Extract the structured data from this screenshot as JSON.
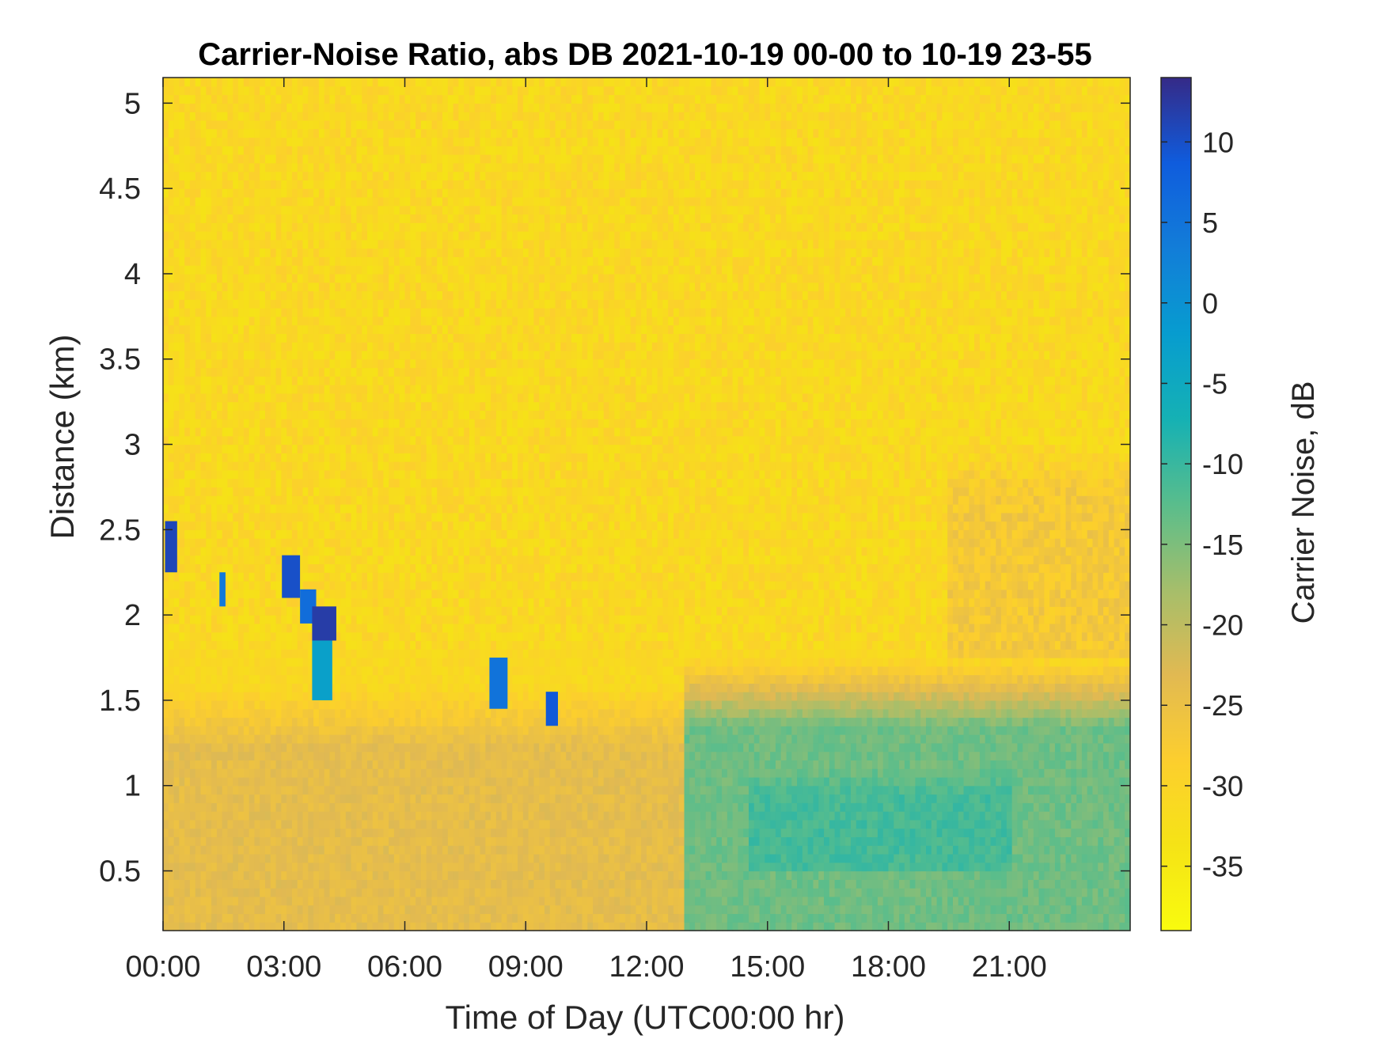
{
  "chart_data": {
    "type": "heatmap",
    "title": "Carrier-Noise Ratio, abs DB 2021-10-19 00-00 to 10-19 23-55",
    "xlabel": "Time of Day (UTC00:00 hr)",
    "ylabel": "Distance (km)",
    "colorbar_label": "Carrier Noise, dB",
    "x_ticks": [
      "00:00",
      "03:00",
      "06:00",
      "09:00",
      "12:00",
      "15:00",
      "18:00",
      "21:00"
    ],
    "x_tick_hours": [
      0,
      3,
      6,
      9,
      12,
      15,
      18,
      21
    ],
    "xlim_hours": [
      0,
      24
    ],
    "y_ticks": [
      "0.5",
      "1",
      "1.5",
      "2",
      "2.5",
      "3",
      "3.5",
      "4",
      "4.5",
      "5"
    ],
    "y_tick_values": [
      0.5,
      1,
      1.5,
      2,
      2.5,
      3,
      3.5,
      4,
      4.5,
      5
    ],
    "ylim": [
      0.15,
      5.15
    ],
    "colorbar_ticks": [
      "10",
      "5",
      "0",
      "-5",
      "-10",
      "-15",
      "-20",
      "-25",
      "-30",
      "-35"
    ],
    "colorbar_tick_values": [
      10,
      5,
      0,
      -5,
      -10,
      -15,
      -20,
      -25,
      -30,
      -35
    ],
    "clim": [
      -39,
      14
    ],
    "colormap": "parula",
    "background_level_db": -31,
    "features": [
      {
        "name": "boundary layer, morning",
        "time_hours": [
          0,
          13
        ],
        "distance_km": [
          0.15,
          1.6
        ],
        "level_db": -24
      },
      {
        "name": "boundary layer, afternoon",
        "time_hours": [
          13,
          24
        ],
        "distance_km": [
          0.15,
          1.75
        ],
        "level_db": -14
      },
      {
        "name": "boundary layer core",
        "time_hours": [
          14.5,
          21
        ],
        "distance_km": [
          0.5,
          1.1
        ],
        "level_db": -11
      },
      {
        "name": "evening residual layer",
        "time_hours": [
          19.5,
          24
        ],
        "distance_km": [
          1.75,
          3.0
        ],
        "level_db": -27
      }
    ],
    "cloud_returns": [
      {
        "time_hours": [
          0.05,
          0.35
        ],
        "distance_km": [
          2.25,
          2.55
        ],
        "level_db": 11
      },
      {
        "time_hours": [
          1.4,
          1.55
        ],
        "distance_km": [
          2.05,
          2.25
        ],
        "level_db": 4
      },
      {
        "time_hours": [
          2.95,
          3.4
        ],
        "distance_km": [
          2.1,
          2.35
        ],
        "level_db": 10
      },
      {
        "time_hours": [
          3.4,
          3.8
        ],
        "distance_km": [
          1.95,
          2.15
        ],
        "level_db": 6
      },
      {
        "time_hours": [
          3.7,
          4.3
        ],
        "distance_km": [
          1.85,
          2.05
        ],
        "level_db": 12
      },
      {
        "time_hours": [
          3.7,
          4.2
        ],
        "distance_km": [
          1.5,
          1.85
        ],
        "level_db": -3
      },
      {
        "time_hours": [
          8.1,
          8.55
        ],
        "distance_km": [
          1.45,
          1.75
        ],
        "level_db": 5
      },
      {
        "time_hours": [
          9.5,
          9.8
        ],
        "distance_km": [
          1.35,
          1.55
        ],
        "level_db": 9
      }
    ]
  }
}
